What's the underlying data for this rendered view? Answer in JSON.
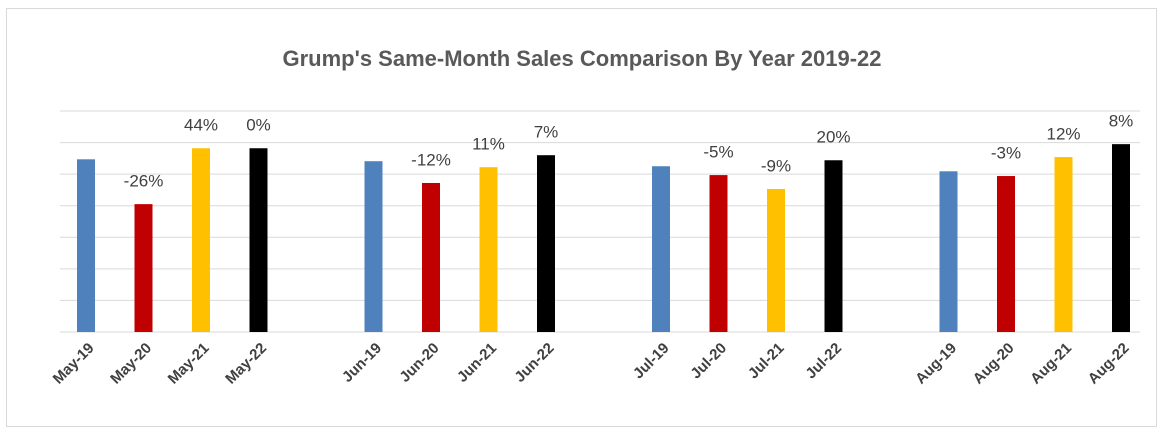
{
  "chart_data": {
    "type": "bar",
    "title": "Grump's Same-Month Sales Comparison By Year 2019-22",
    "categories": [
      "May-19",
      "May-20",
      "May-21",
      "May-22",
      "Jun-19",
      "Jun-20",
      "Jun-21",
      "Jun-22",
      "Jul-19",
      "Jul-20",
      "Jul-21",
      "Jul-22",
      "Aug-19",
      "Aug-20",
      "Aug-21",
      "Aug-22"
    ],
    "values": [
      5.47,
      4.05,
      5.82,
      5.82,
      5.41,
      4.72,
      5.22,
      5.6,
      5.25,
      4.97,
      4.53,
      5.44,
      5.09,
      4.94,
      5.54,
      5.95
    ],
    "bar_labels": [
      null,
      "-26%",
      "44%",
      "0%",
      null,
      "-12%",
      "11%",
      "7%",
      null,
      "-5%",
      "-9%",
      "20%",
      null,
      "-3%",
      "12%",
      "8%"
    ],
    "colors": [
      "#4f81bd",
      "#c00000",
      "#ffc000",
      "#000000",
      "#4f81bd",
      "#c00000",
      "#ffc000",
      "#000000",
      "#4f81bd",
      "#c00000",
      "#ffc000",
      "#000000",
      "#4f81bd",
      "#c00000",
      "#ffc000",
      "#000000"
    ],
    "ylim": [
      0,
      7
    ],
    "yticks": [
      0,
      1,
      2,
      3,
      4,
      5,
      6,
      7
    ],
    "grid": true
  }
}
